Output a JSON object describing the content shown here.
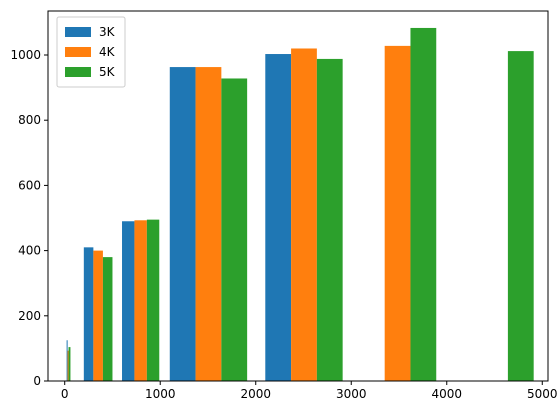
{
  "chart_data": {
    "type": "bar",
    "title": "",
    "xlabel": "",
    "ylabel": "",
    "xlim": [
      -175,
      5060
    ],
    "ylim": [
      0,
      1135
    ],
    "xticks": [
      0,
      1000,
      2000,
      3000,
      4000,
      5000
    ],
    "yticks": [
      0,
      200,
      400,
      600,
      800,
      1000
    ],
    "grid": false,
    "legend_position": "upper-left",
    "series": [
      {
        "name": "3K",
        "color": "#1f77b4",
        "bars": [
          {
            "x": 20,
            "width": 10,
            "value": 125
          },
          {
            "x": 200,
            "width": 100,
            "value": 410
          },
          {
            "x": 600,
            "width": 130,
            "value": 490
          },
          {
            "x": 1100,
            "width": 270,
            "value": 963
          },
          {
            "x": 2100,
            "width": 270,
            "value": 1003
          }
        ]
      },
      {
        "name": "4K",
        "color": "#ff7f0e",
        "bars": [
          {
            "x": 30,
            "width": 10,
            "value": 93
          },
          {
            "x": 300,
            "width": 100,
            "value": 400
          },
          {
            "x": 730,
            "width": 130,
            "value": 493
          },
          {
            "x": 1370,
            "width": 270,
            "value": 963
          },
          {
            "x": 2370,
            "width": 270,
            "value": 1020
          },
          {
            "x": 3350,
            "width": 270,
            "value": 1028
          }
        ]
      },
      {
        "name": "5K",
        "color": "#2ca02c",
        "bars": [
          {
            "x": 40,
            "width": 20,
            "value": 104
          },
          {
            "x": 400,
            "width": 100,
            "value": 380
          },
          {
            "x": 860,
            "width": 130,
            "value": 495
          },
          {
            "x": 1640,
            "width": 270,
            "value": 928
          },
          {
            "x": 2640,
            "width": 270,
            "value": 988
          },
          {
            "x": 3620,
            "width": 270,
            "value": 1083
          },
          {
            "x": 4640,
            "width": 270,
            "value": 1012
          }
        ]
      }
    ]
  }
}
